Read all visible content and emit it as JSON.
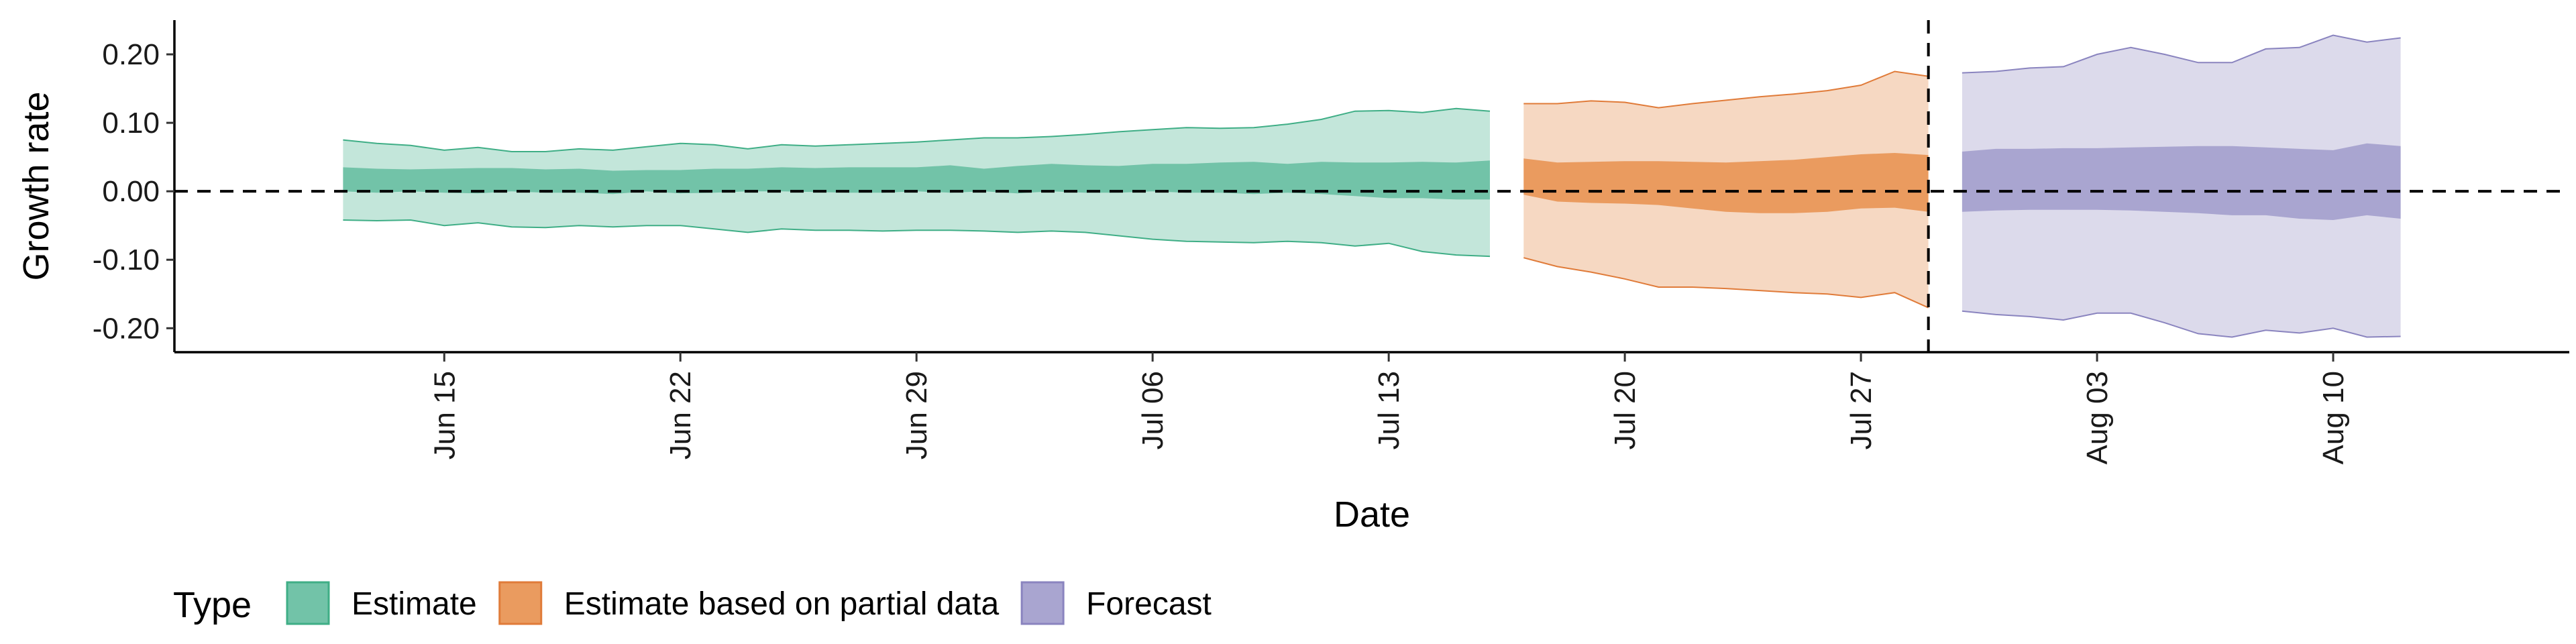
{
  "chart_data": {
    "type": "area",
    "xlabel": "Date",
    "ylabel": "Growth rate",
    "ylim": [
      -0.235,
      0.25
    ],
    "y_ticks": [
      -0.2,
      -0.1,
      0.0,
      0.1,
      0.2
    ],
    "y_tick_labels": [
      "-0.20",
      "-0.10",
      "0.00",
      "0.10",
      "0.20"
    ],
    "x_range": [
      "2021-06-07",
      "2021-08-17"
    ],
    "x_ticks": [
      "2021-06-15",
      "2021-06-22",
      "2021-06-29",
      "2021-07-06",
      "2021-07-13",
      "2021-07-20",
      "2021-07-27",
      "2021-08-03",
      "2021-08-10"
    ],
    "x_tick_labels": [
      "Jun 15",
      "Jun 22",
      "Jun 29",
      "Jul 06",
      "Jul 13",
      "Jul 20",
      "Jul 27",
      "Aug 03",
      "Aug 10"
    ],
    "hline_y": 0,
    "vline_date": "2021-07-29",
    "grid": false,
    "legend": {
      "title": "Type",
      "placement": "bottom-left",
      "items": [
        "Estimate",
        "Estimate based on partial data",
        "Forecast"
      ]
    },
    "colors": {
      "Estimate": {
        "outer": "#c3e6da",
        "inner": "#72c3a8",
        "line": "#3fae86"
      },
      "Estimate based on partial data": {
        "outer": "#f6d8c2",
        "inner": "#ea9b5f",
        "line": "#e07b39"
      },
      "Forecast": {
        "outer": "#dcdaeb",
        "inner": "#a9a5d0",
        "line": "#8a84bf"
      }
    },
    "series": [
      {
        "name": "Estimate",
        "dates": [
          "2021-06-12",
          "2021-06-13",
          "2021-06-14",
          "2021-06-15",
          "2021-06-16",
          "2021-06-17",
          "2021-06-18",
          "2021-06-19",
          "2021-06-20",
          "2021-06-21",
          "2021-06-22",
          "2021-06-23",
          "2021-06-24",
          "2021-06-25",
          "2021-06-26",
          "2021-06-27",
          "2021-06-28",
          "2021-06-29",
          "2021-06-30",
          "2021-07-01",
          "2021-07-02",
          "2021-07-03",
          "2021-07-04",
          "2021-07-05",
          "2021-07-06",
          "2021-07-07",
          "2021-07-08",
          "2021-07-09",
          "2021-07-10",
          "2021-07-11",
          "2021-07-12",
          "2021-07-13",
          "2021-07-14",
          "2021-07-15",
          "2021-07-16"
        ],
        "upper90": [
          0.075,
          0.07,
          0.067,
          0.06,
          0.064,
          0.058,
          0.058,
          0.062,
          0.06,
          0.065,
          0.07,
          0.068,
          0.062,
          0.068,
          0.066,
          0.068,
          0.07,
          0.072,
          0.075,
          0.078,
          0.078,
          0.08,
          0.083,
          0.087,
          0.09,
          0.093,
          0.092,
          0.093,
          0.098,
          0.105,
          0.117,
          0.118,
          0.115,
          0.121,
          0.117
        ],
        "upper50": [
          0.035,
          0.033,
          0.032,
          0.033,
          0.034,
          0.034,
          0.032,
          0.033,
          0.03,
          0.031,
          0.031,
          0.033,
          0.033,
          0.035,
          0.034,
          0.035,
          0.035,
          0.035,
          0.038,
          0.033,
          0.037,
          0.04,
          0.038,
          0.037,
          0.04,
          0.04,
          0.042,
          0.043,
          0.04,
          0.043,
          0.042,
          0.042,
          0.043,
          0.042,
          0.045
        ],
        "lower50": [
          0.0,
          -0.002,
          0.0,
          -0.002,
          -0.003,
          0.0,
          -0.002,
          -0.002,
          -0.004,
          0.0,
          -0.003,
          -0.002,
          0.0,
          0.0,
          -0.001,
          -0.002,
          -0.002,
          0.0,
          -0.002,
          0.0,
          -0.003,
          0.0,
          -0.002,
          -0.002,
          0.0,
          -0.002,
          -0.002,
          -0.004,
          -0.002,
          -0.004,
          -0.007,
          -0.01,
          -0.01,
          -0.012,
          -0.012
        ],
        "lower90": [
          -0.042,
          -0.043,
          -0.042,
          -0.05,
          -0.046,
          -0.052,
          -0.053,
          -0.05,
          -0.052,
          -0.05,
          -0.05,
          -0.055,
          -0.06,
          -0.055,
          -0.057,
          -0.057,
          -0.058,
          -0.057,
          -0.057,
          -0.058,
          -0.06,
          -0.058,
          -0.06,
          -0.065,
          -0.07,
          -0.073,
          -0.074,
          -0.075,
          -0.073,
          -0.075,
          -0.08,
          -0.076,
          -0.088,
          -0.093,
          -0.095
        ]
      },
      {
        "name": "Estimate based on partial data",
        "dates": [
          "2021-07-17",
          "2021-07-18",
          "2021-07-19",
          "2021-07-20",
          "2021-07-21",
          "2021-07-22",
          "2021-07-23",
          "2021-07-24",
          "2021-07-25",
          "2021-07-26",
          "2021-07-27",
          "2021-07-28",
          "2021-07-29"
        ],
        "upper90": [
          0.128,
          0.128,
          0.132,
          0.13,
          0.122,
          0.128,
          0.133,
          0.138,
          0.142,
          0.147,
          0.155,
          0.175,
          0.168
        ],
        "upper50": [
          0.048,
          0.042,
          0.043,
          0.044,
          0.044,
          0.043,
          0.042,
          0.044,
          0.046,
          0.05,
          0.054,
          0.056,
          0.053
        ],
        "lower50": [
          -0.005,
          -0.015,
          -0.017,
          -0.018,
          -0.02,
          -0.025,
          -0.03,
          -0.032,
          -0.032,
          -0.03,
          -0.025,
          -0.024,
          -0.03
        ],
        "lower90": [
          -0.097,
          -0.11,
          -0.118,
          -0.128,
          -0.14,
          -0.14,
          -0.142,
          -0.145,
          -0.148,
          -0.15,
          -0.155,
          -0.148,
          -0.17
        ]
      },
      {
        "name": "Forecast",
        "dates": [
          "2021-07-30",
          "2021-07-31",
          "2021-08-01",
          "2021-08-02",
          "2021-08-03",
          "2021-08-04",
          "2021-08-05",
          "2021-08-06",
          "2021-08-07",
          "2021-08-08",
          "2021-08-09",
          "2021-08-10",
          "2021-08-11",
          "2021-08-12"
        ],
        "upper90": [
          0.173,
          0.175,
          0.18,
          0.182,
          0.2,
          0.21,
          0.2,
          0.188,
          0.188,
          0.208,
          0.21,
          0.228,
          0.218,
          0.224
        ],
        "upper50": [
          0.058,
          0.062,
          0.062,
          0.063,
          0.063,
          0.064,
          0.065,
          0.066,
          0.066,
          0.064,
          0.062,
          0.06,
          0.07,
          0.066
        ],
        "lower50": [
          -0.03,
          -0.028,
          -0.027,
          -0.027,
          -0.027,
          -0.028,
          -0.03,
          -0.032,
          -0.035,
          -0.035,
          -0.04,
          -0.042,
          -0.035,
          -0.04
        ],
        "lower90": [
          -0.175,
          -0.18,
          -0.183,
          -0.188,
          -0.178,
          -0.178,
          -0.192,
          -0.208,
          -0.213,
          -0.203,
          -0.207,
          -0.2,
          -0.213,
          -0.212
        ]
      }
    ]
  }
}
